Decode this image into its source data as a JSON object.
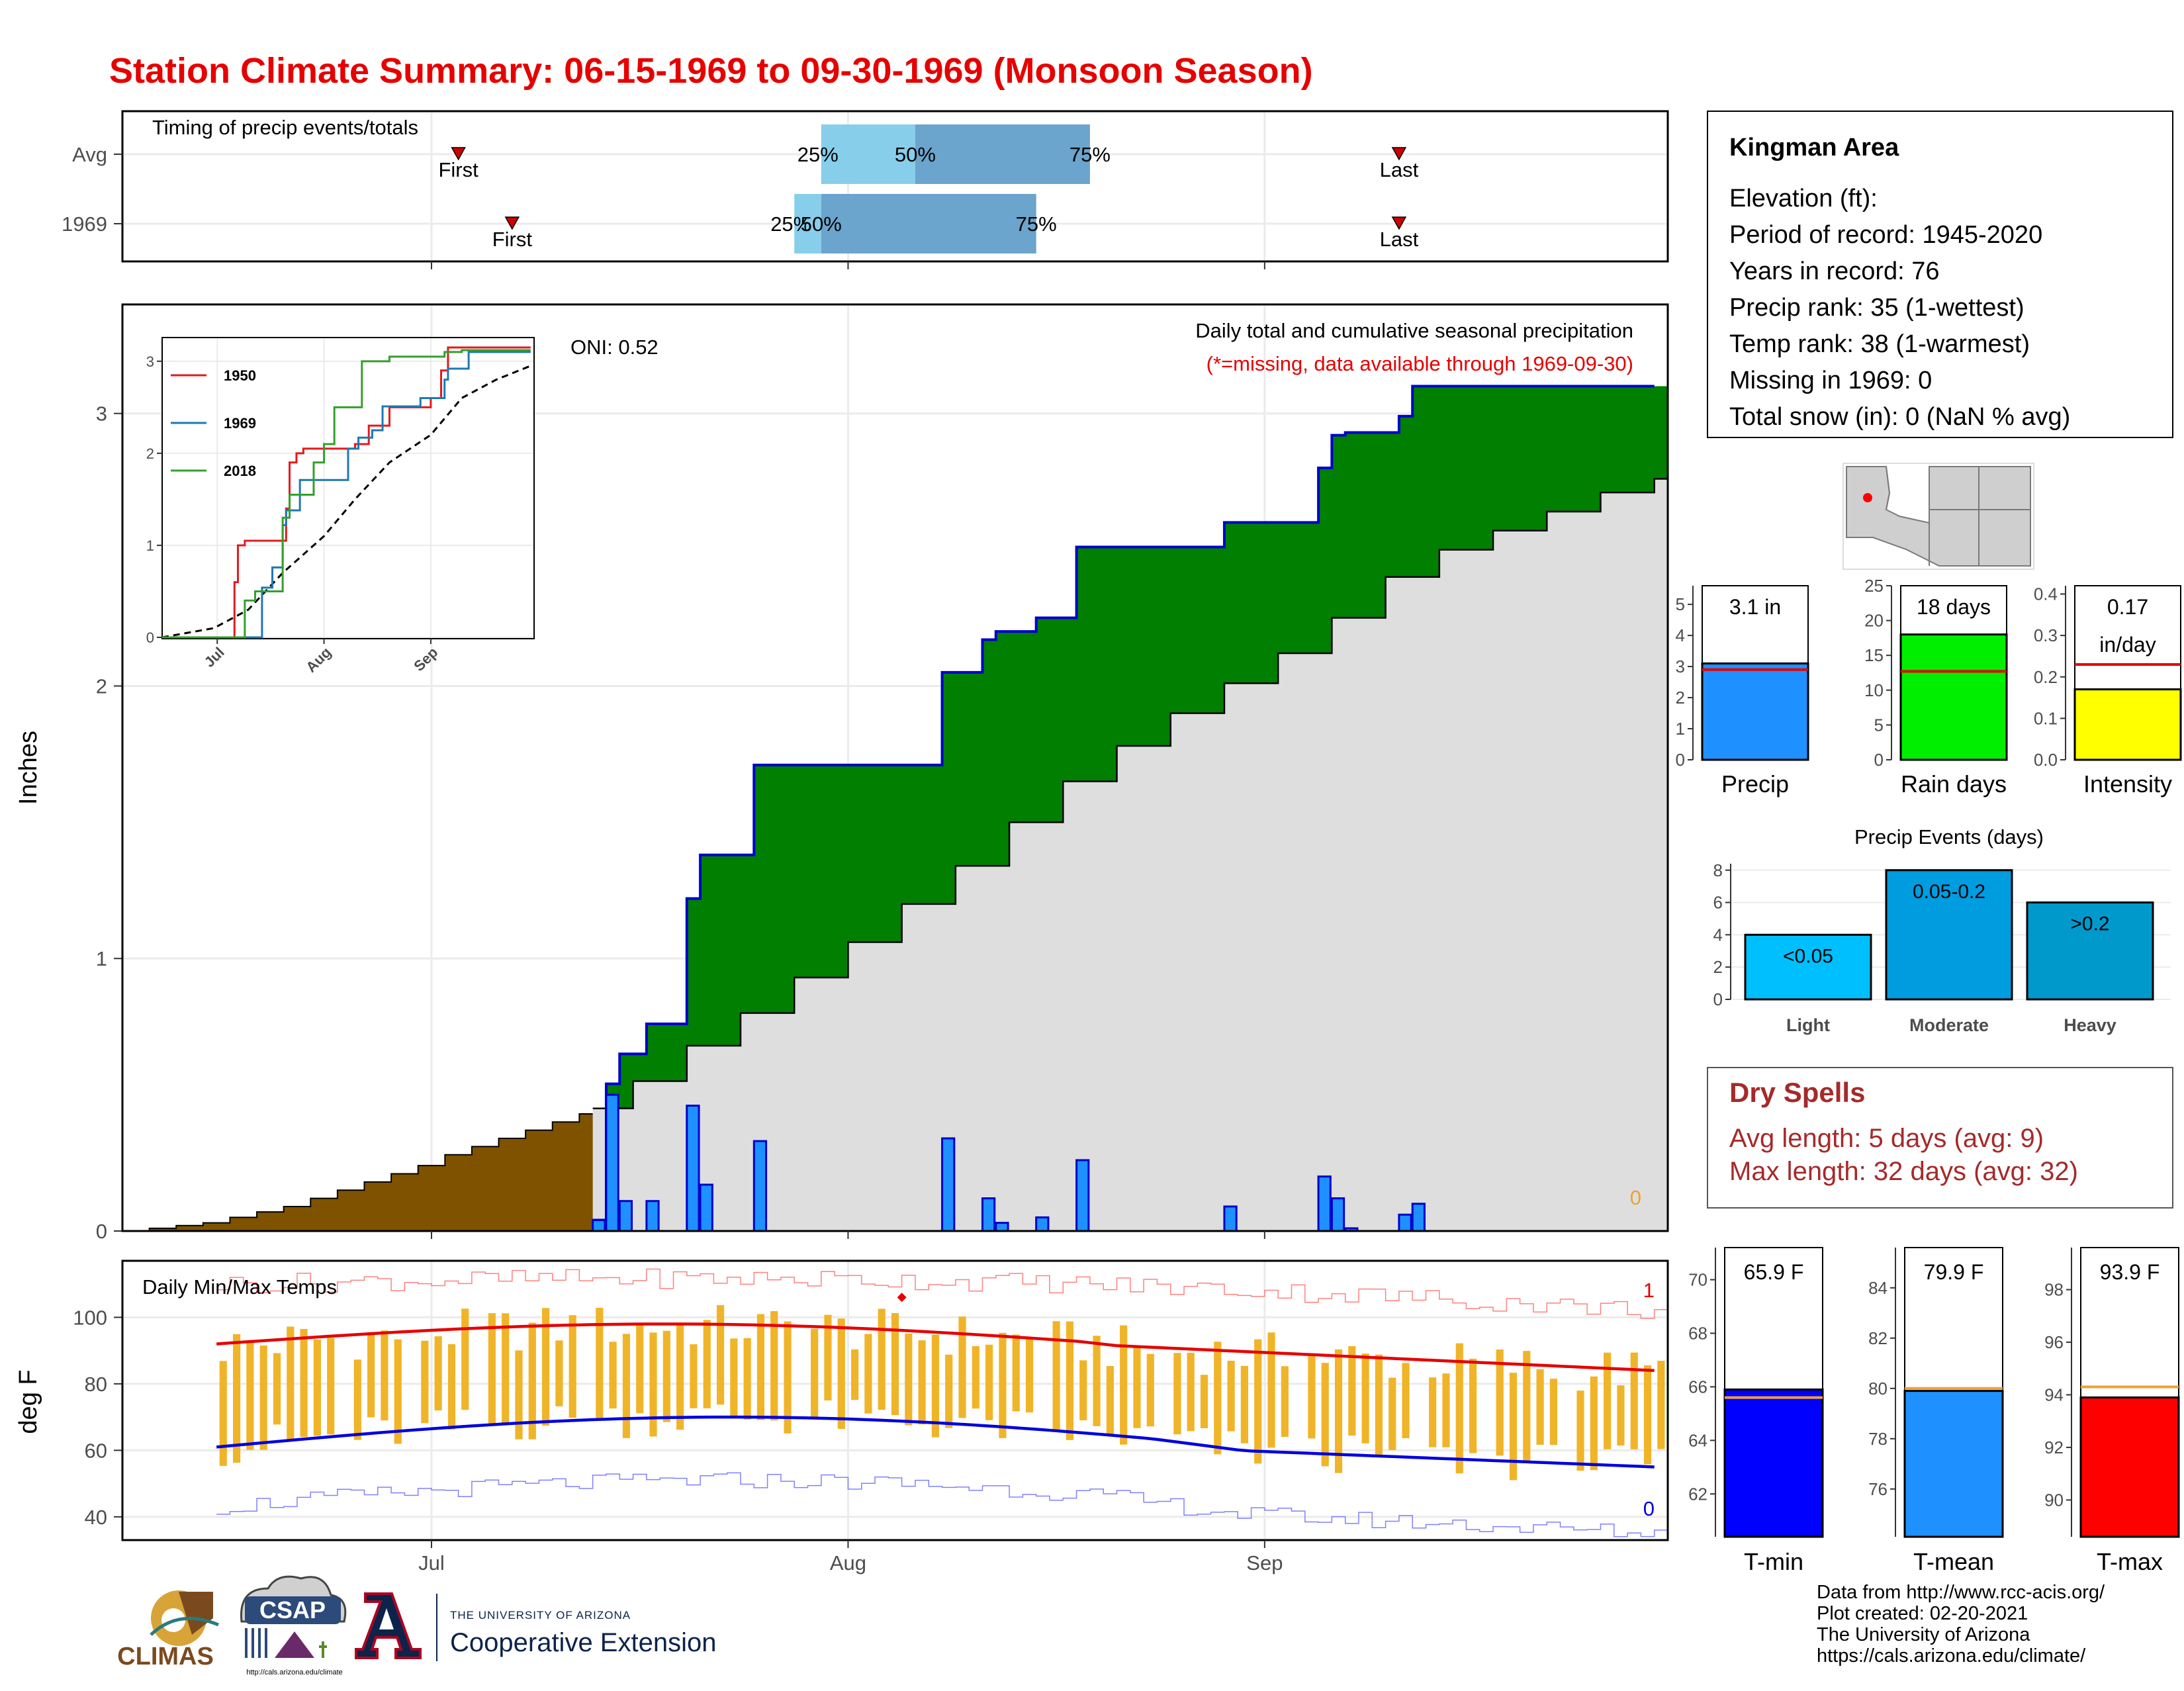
{
  "title": "Station Climate Summary: 06-15-1969 to 09-30-1969 (Monsoon Season)",
  "colors": {
    "title": "#e60000",
    "precip_total": "#007f00",
    "avg_cum": "#dedede",
    "pre_season": "#7f5200",
    "daily_bar": "#1e90ff",
    "daily_bar_edge": "#0000cc",
    "tmax_avg": "#e60000",
    "tmin_avg": "#0000e0",
    "temp_bar": "#f0b429",
    "record_high": "#ff8080",
    "record_low": "#8080ff",
    "dry_spells": "#a52a2a"
  },
  "timing_panel": {
    "title": "Timing of precip events/totals",
    "rows": [
      {
        "label": "Avg",
        "first": "2000-07-03",
        "p25": "2000-07-30",
        "p50": "2000-08-06",
        "p75": "2000-08-19",
        "last": "2000-09-11"
      },
      {
        "label": "1969",
        "first": "2000-07-07",
        "p25": "2000-07-28",
        "p50": "2000-07-30",
        "p75": "2000-08-15",
        "last": "2000-09-11"
      }
    ],
    "first_label": "First",
    "last_label": "Last",
    "pct_labels": [
      "25%",
      "50%",
      "75%"
    ]
  },
  "info_panel": {
    "station": "Kingman Area",
    "lines": [
      "Elevation (ft):",
      "Period of record: 1945-2020",
      "Years in record: 76",
      "Precip rank: 35 (1-wettest)",
      "Temp rank: 38 (1-warmest)",
      "Missing in 1969: 0",
      "Total snow (in): 0 (NaN % avg)"
    ]
  },
  "precip_panel": {
    "ylabel": "Inches",
    "oni": "ONI: 0.52",
    "title": "Daily total and cumulative seasonal precipitation",
    "subtitle": "(*=missing, data available through 1969-09-30)",
    "missing_count": "0",
    "x_ticks": [
      {
        "label": "Jul",
        "date": "2000-07-01"
      },
      {
        "label": "Aug",
        "date": "2000-08-01"
      },
      {
        "label": "Sep",
        "date": "2000-09-01"
      }
    ],
    "y_ticks": [
      0,
      1,
      2,
      3
    ],
    "ylim": [
      0,
      3.4
    ],
    "pre_season_cum": [
      [
        "2000-06-08",
        0.0
      ],
      [
        "2000-06-10",
        0.01
      ],
      [
        "2000-06-12",
        0.02
      ],
      [
        "2000-06-14",
        0.03
      ],
      [
        "2000-06-16",
        0.05
      ],
      [
        "2000-06-18",
        0.07
      ],
      [
        "2000-06-20",
        0.09
      ],
      [
        "2000-06-22",
        0.12
      ],
      [
        "2000-06-24",
        0.15
      ],
      [
        "2000-06-26",
        0.18
      ],
      [
        "2000-06-28",
        0.21
      ],
      [
        "2000-06-30",
        0.24
      ],
      [
        "2000-07-02",
        0.28
      ],
      [
        "2000-07-04",
        0.31
      ],
      [
        "2000-07-06",
        0.34
      ],
      [
        "2000-07-08",
        0.37
      ],
      [
        "2000-07-10",
        0.4
      ],
      [
        "2000-07-12",
        0.43
      ]
    ],
    "daily": [
      [
        "2000-07-13",
        0.04
      ],
      [
        "2000-07-14",
        0.5
      ],
      [
        "2000-07-15",
        0.11
      ],
      [
        "2000-07-17",
        0.11
      ],
      [
        "2000-07-20",
        0.46
      ],
      [
        "2000-07-21",
        0.17
      ],
      [
        "2000-07-25",
        0.33
      ],
      [
        "2000-08-08",
        0.34
      ],
      [
        "2000-08-11",
        0.12
      ],
      [
        "2000-08-12",
        0.03
      ],
      [
        "2000-08-15",
        0.05
      ],
      [
        "2000-08-18",
        0.26
      ],
      [
        "2000-08-29",
        0.09
      ],
      [
        "2000-09-05",
        0.2
      ],
      [
        "2000-09-06",
        0.12
      ],
      [
        "2000-09-07",
        0.01
      ],
      [
        "2000-09-11",
        0.06
      ],
      [
        "2000-09-12",
        0.1
      ]
    ],
    "cumulative_1969": [
      [
        "2000-07-13",
        0.04
      ],
      [
        "2000-07-14",
        0.54
      ],
      [
        "2000-07-15",
        0.65
      ],
      [
        "2000-07-17",
        0.76
      ],
      [
        "2000-07-20",
        1.22
      ],
      [
        "2000-07-21",
        1.38
      ],
      [
        "2000-07-25",
        1.71
      ],
      [
        "2000-08-08",
        2.05
      ],
      [
        "2000-08-11",
        2.17
      ],
      [
        "2000-08-12",
        2.2
      ],
      [
        "2000-08-15",
        2.25
      ],
      [
        "2000-08-18",
        2.51
      ],
      [
        "2000-08-29",
        2.6
      ],
      [
        "2000-09-05",
        2.8
      ],
      [
        "2000-09-06",
        2.92
      ],
      [
        "2000-09-07",
        2.93
      ],
      [
        "2000-09-11",
        2.99
      ],
      [
        "2000-09-12",
        3.1
      ],
      [
        "2000-09-30",
        3.1
      ]
    ],
    "avg_cumulative": [
      [
        "2000-07-13",
        0.45
      ],
      [
        "2000-07-16",
        0.55
      ],
      [
        "2000-07-20",
        0.68
      ],
      [
        "2000-07-24",
        0.8
      ],
      [
        "2000-07-28",
        0.93
      ],
      [
        "2000-08-01",
        1.06
      ],
      [
        "2000-08-05",
        1.2
      ],
      [
        "2000-08-09",
        1.34
      ],
      [
        "2000-08-13",
        1.5
      ],
      [
        "2000-08-17",
        1.65
      ],
      [
        "2000-08-21",
        1.78
      ],
      [
        "2000-08-25",
        1.9
      ],
      [
        "2000-08-29",
        2.01
      ],
      [
        "2000-09-02",
        2.12
      ],
      [
        "2000-09-06",
        2.25
      ],
      [
        "2000-09-10",
        2.4
      ],
      [
        "2000-09-14",
        2.5
      ],
      [
        "2000-09-18",
        2.57
      ],
      [
        "2000-09-22",
        2.64
      ],
      [
        "2000-09-26",
        2.71
      ],
      [
        "2000-09-30",
        2.76
      ]
    ]
  },
  "inset_panel": {
    "y_ticks": [
      0,
      1,
      2,
      3
    ],
    "x_ticks": [
      {
        "label": "Jul",
        "date": "2000-07-01"
      },
      {
        "label": "Aug",
        "date": "2000-08-01"
      },
      {
        "label": "Sep",
        "date": "2000-09-01"
      }
    ],
    "ylim": [
      0,
      3.2
    ],
    "series": [
      {
        "name": "1950",
        "color": "#e31a1c",
        "points": [
          [
            "2000-06-15",
            0
          ],
          [
            "2000-07-05",
            0
          ],
          [
            "2000-07-06",
            0.6
          ],
          [
            "2000-07-07",
            1.0
          ],
          [
            "2000-07-09",
            1.05
          ],
          [
            "2000-07-21",
            1.4
          ],
          [
            "2000-07-22",
            1.9
          ],
          [
            "2000-07-24",
            2.0
          ],
          [
            "2000-07-26",
            2.05
          ],
          [
            "2000-08-10",
            2.1
          ],
          [
            "2000-08-14",
            2.3
          ],
          [
            "2000-08-20",
            2.5
          ],
          [
            "2000-09-01",
            2.6
          ],
          [
            "2000-09-04",
            2.9
          ],
          [
            "2000-09-06",
            3.15
          ],
          [
            "2000-09-30",
            3.15
          ]
        ]
      },
      {
        "name": "1969",
        "color": "#1f78b4",
        "points": [
          [
            "2000-06-15",
            0
          ],
          [
            "2000-07-13",
            0
          ],
          [
            "2000-07-14",
            0.54
          ],
          [
            "2000-07-17",
            0.76
          ],
          [
            "2000-07-20",
            1.22
          ],
          [
            "2000-07-21",
            1.38
          ],
          [
            "2000-07-25",
            1.71
          ],
          [
            "2000-08-08",
            2.05
          ],
          [
            "2000-08-11",
            2.17
          ],
          [
            "2000-08-15",
            2.25
          ],
          [
            "2000-08-18",
            2.51
          ],
          [
            "2000-08-29",
            2.6
          ],
          [
            "2000-09-05",
            2.8
          ],
          [
            "2000-09-06",
            2.92
          ],
          [
            "2000-09-12",
            3.1
          ],
          [
            "2000-09-30",
            3.1
          ]
        ]
      },
      {
        "name": "2018",
        "color": "#33a02c",
        "points": [
          [
            "2000-06-15",
            0
          ],
          [
            "2000-07-08",
            0
          ],
          [
            "2000-07-09",
            0.4
          ],
          [
            "2000-07-12",
            0.5
          ],
          [
            "2000-07-20",
            1.3
          ],
          [
            "2000-07-22",
            1.55
          ],
          [
            "2000-07-29",
            1.9
          ],
          [
            "2000-08-01",
            2.1
          ],
          [
            "2000-08-04",
            2.5
          ],
          [
            "2000-08-12",
            3.0
          ],
          [
            "2000-08-20",
            3.05
          ],
          [
            "2000-09-05",
            3.1
          ],
          [
            "2000-09-10",
            3.12
          ],
          [
            "2000-09-30",
            3.12
          ]
        ]
      }
    ],
    "avg": [
      [
        "2000-06-15",
        0
      ],
      [
        "2000-06-30",
        0.1
      ],
      [
        "2000-07-10",
        0.3
      ],
      [
        "2000-07-20",
        0.7
      ],
      [
        "2000-08-01",
        1.1
      ],
      [
        "2000-08-10",
        1.5
      ],
      [
        "2000-08-20",
        1.9
      ],
      [
        "2000-09-01",
        2.2
      ],
      [
        "2000-09-10",
        2.6
      ],
      [
        "2000-09-20",
        2.8
      ],
      [
        "2000-09-30",
        2.95
      ]
    ]
  },
  "summary_bars": [
    {
      "axis": "Precip",
      "value_label": "3.1 in",
      "value": 3.1,
      "avg": 2.9,
      "ylim": [
        0,
        5.6
      ],
      "ticks": [
        0,
        1,
        2,
        3,
        4,
        5
      ],
      "color": "#1e90ff"
    },
    {
      "axis": "Rain days",
      "value_label": "18 days",
      "value": 18,
      "avg": 12.7,
      "ylim": [
        0,
        25
      ],
      "ticks": [
        0,
        5,
        10,
        15,
        20,
        25
      ],
      "color": "#00ee00"
    },
    {
      "axis": "Intensity",
      "value_label": "0.17",
      "value_label2": "in/day",
      "value": 0.17,
      "avg": 0.23,
      "ylim": [
        0,
        0.42
      ],
      "ticks": [
        "0.0",
        "0.1",
        "0.2",
        "0.3",
        "0.4"
      ],
      "color": "#ffff00"
    }
  ],
  "events_panel": {
    "title": "Precip Events (days)",
    "ticks": [
      0,
      2,
      4,
      6,
      8
    ],
    "ylim": [
      0,
      8.4
    ],
    "bars": [
      {
        "category": "Light",
        "label": "<0.05",
        "value": 4,
        "color": "#00bfff"
      },
      {
        "category": "Moderate",
        "label": "0.05-0.2",
        "value": 8,
        "color": "#009ce0"
      },
      {
        "category": "Heavy",
        "label": ">0.2",
        "value": 6,
        "color": "#0099cc"
      }
    ]
  },
  "dry_spells": {
    "title": "Dry Spells",
    "avg_length": "Avg length: 5 days (avg: 9)",
    "max_length": "Max length: 32 days (avg: 32)"
  },
  "temp_panel": {
    "ylabel": "deg F",
    "title": "Daily Min/Max Temps",
    "record_high_count": "1",
    "record_low_count": "0",
    "y_ticks": [
      40,
      60,
      80,
      100
    ],
    "ylim": [
      33,
      117
    ],
    "x_ticks": [
      {
        "label": "Jul",
        "date": "2000-07-01"
      },
      {
        "label": "Aug",
        "date": "2000-08-01"
      },
      {
        "label": "Sep",
        "date": "2000-09-01"
      }
    ],
    "start": "2000-06-15",
    "end": "2000-09-30",
    "record_high_marker": {
      "date": "2000-08-05",
      "value": 106
    }
  },
  "temp_bars": [
    {
      "axis": "T-min",
      "value_label": "65.9 F",
      "value": 65.9,
      "avg": 65.6,
      "ylim": [
        60.4,
        71.2
      ],
      "ticks": [
        62,
        64,
        66,
        68,
        70
      ],
      "color": "#0000ff"
    },
    {
      "axis": "T-mean",
      "value_label": "79.9 F",
      "value": 79.9,
      "avg": 80.0,
      "ylim": [
        74.1,
        85.6
      ],
      "ticks": [
        76,
        78,
        80,
        82,
        84
      ],
      "color": "#1e90ff"
    },
    {
      "axis": "T-max",
      "value_label": "93.9 F",
      "value": 93.9,
      "avg": 94.3,
      "ylim": [
        88.6,
        99.6
      ],
      "ticks": [
        90,
        92,
        94,
        96,
        98
      ],
      "color": "#ff0000"
    }
  ],
  "logos": {
    "climas": "CLIMAS",
    "csap": "CSAP",
    "csap_url": "http://cals.arizona.edu/climate",
    "ua_line1": "THE UNIVERSITY OF ARIZONA",
    "ua_line2": "Cooperative Extension"
  },
  "credits": [
    "Data from http://www.rcc-acis.org/",
    "Plot created: 02-20-2021",
    "The University of Arizona",
    "https://cals.arizona.edu/climate/"
  ]
}
